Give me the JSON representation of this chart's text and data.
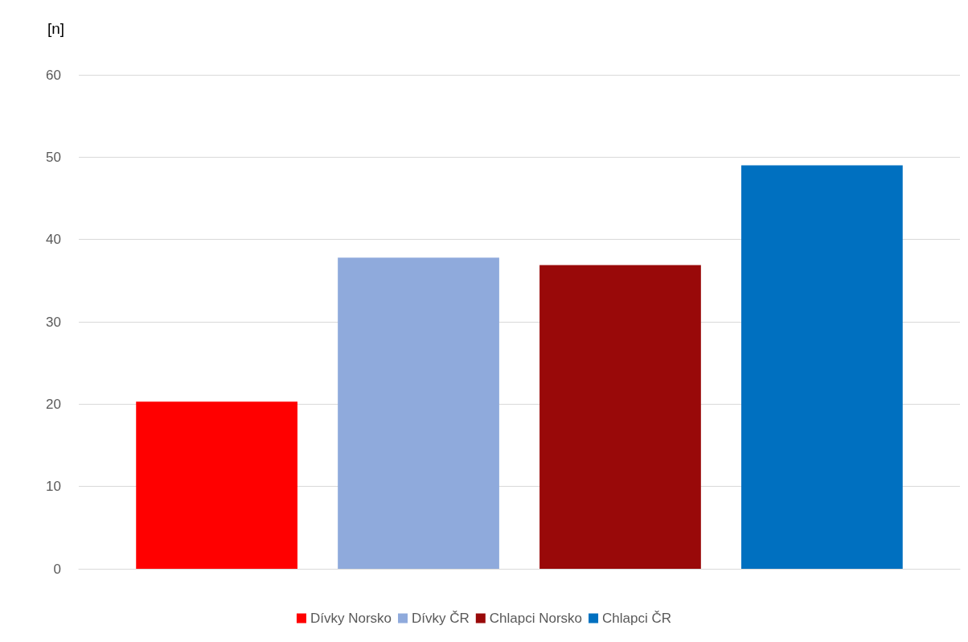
{
  "chart_data": {
    "type": "bar",
    "ylabel": "[n]",
    "categories": [
      null
    ],
    "series": [
      {
        "name": "Dívky Norsko",
        "color": "#ff0000",
        "values": [
          20.3
        ]
      },
      {
        "name": "Dívky ČR",
        "color": "#8faadc",
        "values": [
          37.8
        ]
      },
      {
        "name": "Chlapci Norsko",
        "color": "#990909",
        "values": [
          36.9
        ]
      },
      {
        "name": "Chlapci ČR",
        "color": "#0070c0",
        "values": [
          49
        ]
      }
    ],
    "ylim": [
      0,
      60
    ],
    "yticks": [
      0,
      10,
      20,
      30,
      40,
      50,
      60
    ],
    "grid": "y",
    "legend": "bottom"
  }
}
